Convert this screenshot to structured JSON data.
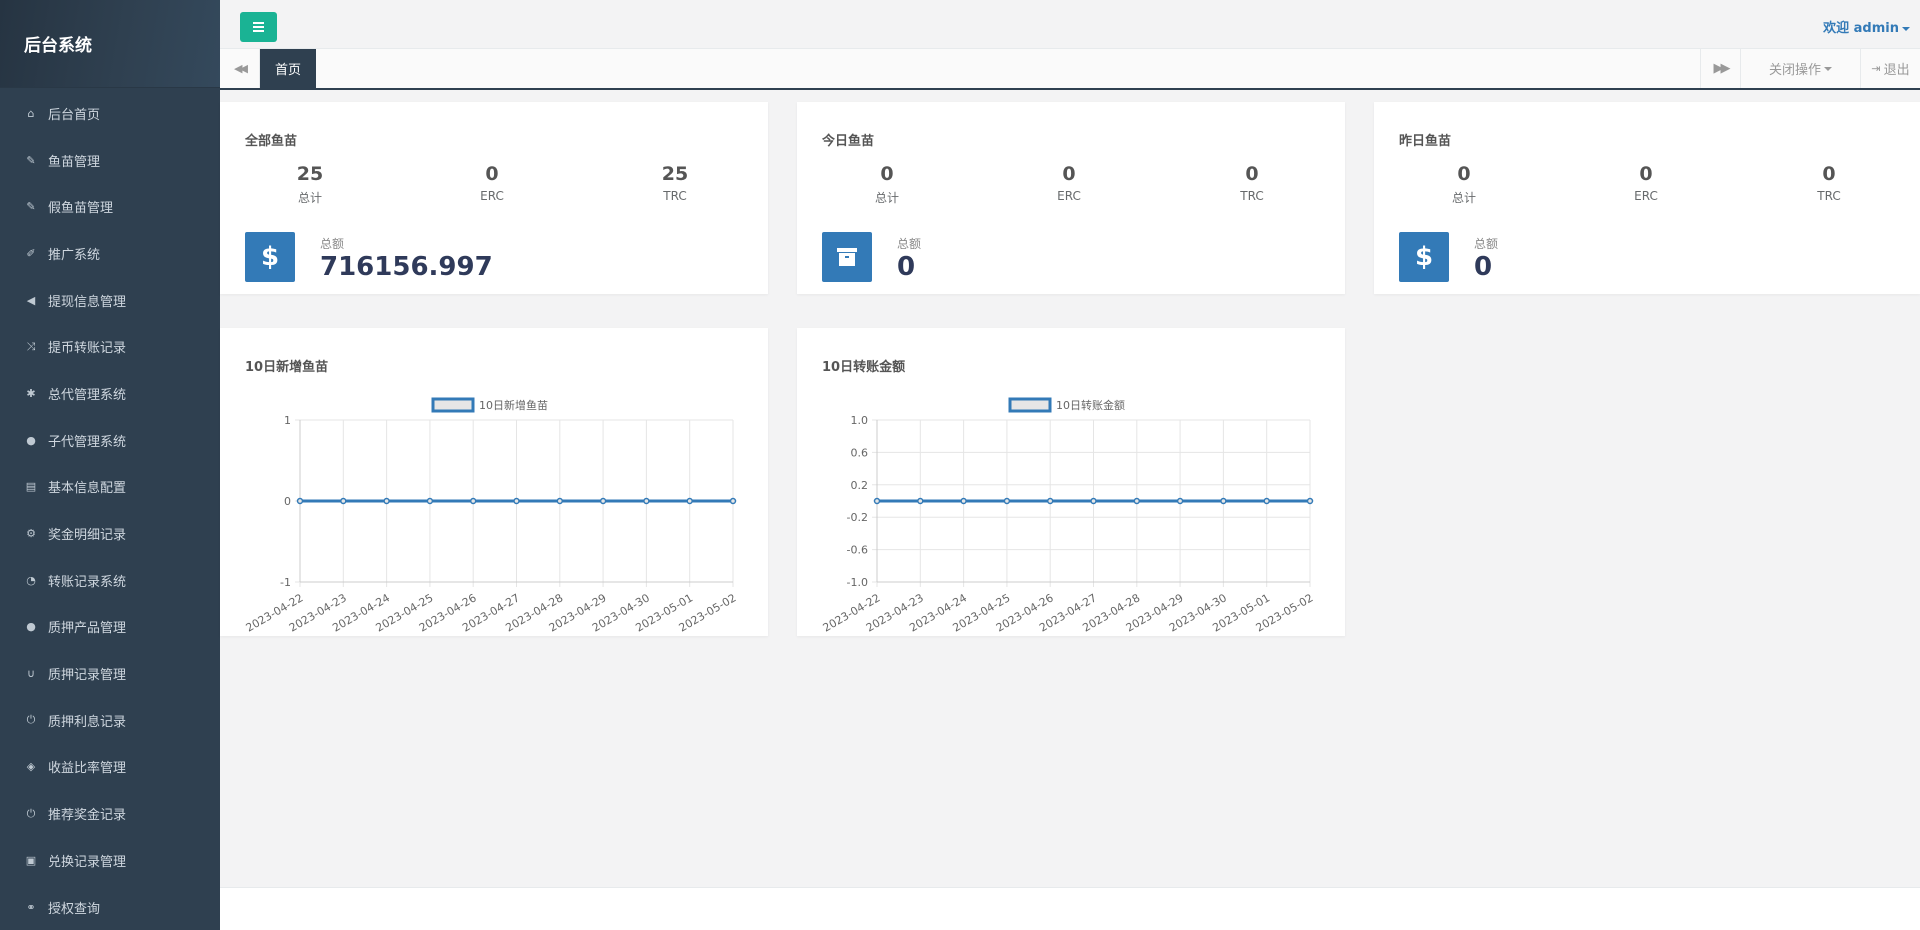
{
  "sidebar": {
    "brand": "后台系统",
    "items": [
      {
        "label": "后台首页",
        "icon": "home-icon",
        "glyph": "⌂"
      },
      {
        "label": "鱼苗管理",
        "icon": "wrench-icon",
        "glyph": "✎"
      },
      {
        "label": "假鱼苗管理",
        "icon": "wrench-icon",
        "glyph": "✎"
      },
      {
        "label": "推广系统",
        "icon": "edit-icon",
        "glyph": "✐"
      },
      {
        "label": "提现信息管理",
        "icon": "bullhorn-icon",
        "glyph": "◀"
      },
      {
        "label": "提币转账记录",
        "icon": "random-icon",
        "glyph": "⤨"
      },
      {
        "label": "总代管理系统",
        "icon": "asterisk-icon",
        "glyph": "✱"
      },
      {
        "label": "子代管理系统",
        "icon": "users-icon",
        "glyph": "●"
      },
      {
        "label": "基本信息配置",
        "icon": "file-icon",
        "glyph": "▤"
      },
      {
        "label": "奖金明细记录",
        "icon": "cogs-icon",
        "glyph": "⚙"
      },
      {
        "label": "转账记录系统",
        "icon": "dashboard-icon",
        "glyph": "◔"
      },
      {
        "label": "质押产品管理",
        "icon": "comment-icon",
        "glyph": "●"
      },
      {
        "label": "质押记录管理",
        "icon": "magnet-icon",
        "glyph": "∪"
      },
      {
        "label": "质押利息记录",
        "icon": "power-icon",
        "glyph": "⏻"
      },
      {
        "label": "收益比率管理",
        "icon": "shield-icon",
        "glyph": "◈"
      },
      {
        "label": "推荐奖金记录",
        "icon": "power-icon",
        "glyph": "⏻"
      },
      {
        "label": "兑换记录管理",
        "icon": "save-icon",
        "glyph": "▣"
      },
      {
        "label": "授权查询",
        "icon": "binoculars-icon",
        "glyph": "⚭"
      }
    ]
  },
  "header": {
    "welcome": "欢迎 admin"
  },
  "tabs": {
    "active": "首页",
    "close_ops": "关闭操作",
    "logout": "退出"
  },
  "cards": [
    {
      "title": "全部鱼苗",
      "total": "25",
      "erc": "0",
      "trc": "25",
      "total_label": "总计",
      "erc_label": "ERC",
      "trc_label": "TRC",
      "sum_label": "总额",
      "sum_value": "716156.997",
      "icon": "dollar-icon"
    },
    {
      "title": "今日鱼苗",
      "total": "0",
      "erc": "0",
      "trc": "0",
      "total_label": "总计",
      "erc_label": "ERC",
      "trc_label": "TRC",
      "sum_label": "总额",
      "sum_value": "0",
      "icon": "archive-icon"
    },
    {
      "title": "昨日鱼苗",
      "total": "0",
      "erc": "0",
      "trc": "0",
      "total_label": "总计",
      "erc_label": "ERC",
      "trc_label": "TRC",
      "sum_label": "总额",
      "sum_value": "0",
      "icon": "dollar-icon"
    }
  ],
  "colors": {
    "sidebar": "#2f4050",
    "accent": "#1ab394",
    "primary": "#337ab7"
  },
  "chart_data": [
    {
      "type": "line",
      "title": "10日新增鱼苗",
      "x": [
        "2023-04-22",
        "2023-04-23",
        "2023-04-24",
        "2023-04-25",
        "2023-04-26",
        "2023-04-27",
        "2023-04-28",
        "2023-04-29",
        "2023-04-30",
        "2023-05-01",
        "2023-05-02"
      ],
      "series": [
        {
          "name": "10日新增鱼苗",
          "values": [
            0,
            0,
            0,
            0,
            0,
            0,
            0,
            0,
            0,
            0,
            0
          ]
        }
      ],
      "yticks": [
        "1",
        "0",
        "-1"
      ],
      "ylim": [
        -1,
        1
      ],
      "legend": "top-center",
      "grid": true
    },
    {
      "type": "line",
      "title": "10日转账金额",
      "x": [
        "2023-04-22",
        "2023-04-23",
        "2023-04-24",
        "2023-04-25",
        "2023-04-26",
        "2023-04-27",
        "2023-04-28",
        "2023-04-29",
        "2023-04-30",
        "2023-05-01",
        "2023-05-02"
      ],
      "series": [
        {
          "name": "10日转账金额",
          "values": [
            0,
            0,
            0,
            0,
            0,
            0,
            0,
            0,
            0,
            0,
            0
          ]
        }
      ],
      "yticks": [
        "1.0",
        "0.6",
        "0.2",
        "-0.2",
        "-0.6",
        "-1.0"
      ],
      "ylim": [
        -1,
        1
      ],
      "legend": "top-center",
      "grid": true
    }
  ]
}
